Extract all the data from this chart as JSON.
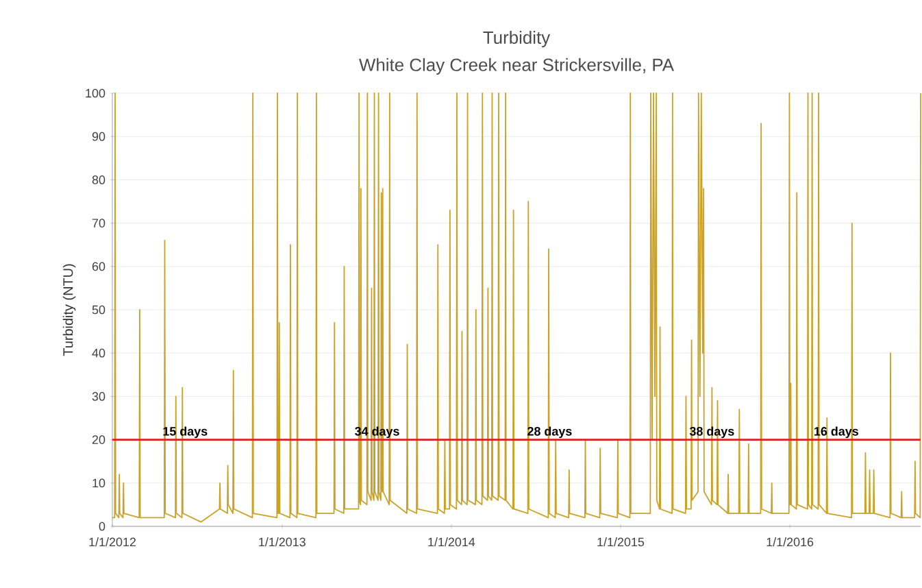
{
  "chart_data": {
    "type": "line",
    "title": "Turbidity",
    "subtitle": "White Clay Creek near Strickersville, PA",
    "ylabel": "Turbidity (NTU)",
    "color": "#c9a227",
    "marker": "none",
    "line_style": "solid",
    "grid": "y",
    "xlim": [
      "2012-01-01",
      "2016-10-09"
    ],
    "xticks": [
      {
        "value": "2012-01-01",
        "label": "1/1/2012"
      },
      {
        "value": "2013-01-01",
        "label": "1/1/2013"
      },
      {
        "value": "2014-01-01",
        "label": "1/1/2014"
      },
      {
        "value": "2015-01-01",
        "label": "1/1/2015"
      },
      {
        "value": "2016-01-01",
        "label": "1/1/2016"
      }
    ],
    "ylim": [
      0,
      100
    ],
    "yticks": [
      0,
      10,
      20,
      30,
      40,
      50,
      60,
      70,
      80,
      90,
      100
    ],
    "ref_lines": [
      {
        "axis": "y",
        "value": 20,
        "color": "#e02020"
      }
    ],
    "annotations": [
      {
        "text": "15 days",
        "x": "2012-06-06",
        "y": 20
      },
      {
        "text": "34 days",
        "x": "2013-07-25",
        "y": 20
      },
      {
        "text": "28 days",
        "x": "2014-08-01",
        "y": 20
      },
      {
        "text": "38 days",
        "x": "2015-07-17",
        "y": 20
      },
      {
        "text": "16 days",
        "x": "2016-04-10",
        "y": 20
      }
    ],
    "x": [
      "2012-01-01",
      "2012-01-06",
      "2012-01-07",
      "2012-01-08",
      "2012-01-15",
      "2012-01-16",
      "2012-01-17",
      "2012-01-24",
      "2012-01-25",
      "2012-01-26",
      "2012-02-28",
      "2012-02-29",
      "2012-03-01",
      "2012-04-22",
      "2012-04-23",
      "2012-04-24",
      "2012-05-16",
      "2012-05-17",
      "2012-05-18",
      "2012-05-30",
      "2012-05-31",
      "2012-06-01",
      "2012-07-10",
      "2012-08-19",
      "2012-08-20",
      "2012-08-21",
      "2012-09-05",
      "2012-09-06",
      "2012-09-07",
      "2012-09-17",
      "2012-09-18",
      "2012-09-19",
      "2012-10-29",
      "2012-10-30",
      "2012-10-31",
      "2012-12-21",
      "2012-12-22",
      "2012-12-23",
      "2012-12-25",
      "2012-12-26",
      "2012-12-27",
      "2013-01-18",
      "2013-01-19",
      "2013-01-20",
      "2013-02-02",
      "2013-02-03",
      "2013-02-04",
      "2013-03-15",
      "2013-03-16",
      "2013-03-17",
      "2013-04-23",
      "2013-04-24",
      "2013-04-25",
      "2013-05-14",
      "2013-05-15",
      "2013-05-16",
      "2013-06-15",
      "2013-06-16",
      "2013-06-17",
      "2013-06-19",
      "2013-06-20",
      "2013-06-21",
      "2013-07-03",
      "2013-07-04",
      "2013-07-05",
      "2013-07-12",
      "2013-07-13",
      "2013-07-14",
      "2013-07-18",
      "2013-07-19",
      "2013-07-20",
      "2013-07-27",
      "2013-07-28",
      "2013-07-29",
      "2013-08-02",
      "2013-08-03",
      "2013-08-04",
      "2013-08-05",
      "2013-08-06",
      "2013-08-07",
      "2013-08-20",
      "2013-08-21",
      "2013-08-22",
      "2013-09-27",
      "2013-09-28",
      "2013-09-29",
      "2013-10-18",
      "2013-10-19",
      "2013-10-20",
      "2013-12-02",
      "2013-12-03",
      "2013-12-04",
      "2013-12-17",
      "2013-12-18",
      "2013-12-19",
      "2013-12-28",
      "2013-12-29",
      "2013-12-30",
      "2014-01-12",
      "2014-01-13",
      "2014-01-14",
      "2014-01-23",
      "2014-01-24",
      "2014-01-25",
      "2014-02-04",
      "2014-02-05",
      "2014-02-06",
      "2014-02-22",
      "2014-02-23",
      "2014-02-24",
      "2014-03-08",
      "2014-03-09",
      "2014-03-10",
      "2014-03-20",
      "2014-03-21",
      "2014-03-22",
      "2014-03-29",
      "2014-03-30",
      "2014-03-31",
      "2014-04-12",
      "2014-04-13",
      "2014-04-14",
      "2014-04-27",
      "2014-04-28",
      "2014-04-29",
      "2014-05-14",
      "2014-05-15",
      "2014-05-16",
      "2014-06-15",
      "2014-06-16",
      "2014-06-17",
      "2014-07-29",
      "2014-07-30",
      "2014-07-31",
      "2014-08-13",
      "2014-08-14",
      "2014-08-15",
      "2014-09-11",
      "2014-09-12",
      "2014-09-13",
      "2014-10-16",
      "2014-10-17",
      "2014-10-18",
      "2014-11-17",
      "2014-11-18",
      "2014-11-19",
      "2014-12-25",
      "2014-12-26",
      "2014-12-27",
      "2015-01-21",
      "2015-01-22",
      "2015-01-23",
      "2015-03-06",
      "2015-03-07",
      "2015-03-10",
      "2015-03-13",
      "2015-03-16",
      "2015-03-19",
      "2015-03-20",
      "2015-03-26",
      "2015-03-27",
      "2015-03-28",
      "2015-04-22",
      "2015-04-23",
      "2015-04-24",
      "2015-05-21",
      "2015-05-22",
      "2015-05-23",
      "2015-06-02",
      "2015-06-03",
      "2015-06-04",
      "2015-06-17",
      "2015-06-18",
      "2015-06-21",
      "2015-06-24",
      "2015-06-27",
      "2015-06-29",
      "2015-06-30",
      "2015-07-16",
      "2015-07-17",
      "2015-07-18",
      "2015-07-28",
      "2015-07-29",
      "2015-07-30",
      "2015-08-20",
      "2015-08-21",
      "2015-08-22",
      "2015-09-13",
      "2015-09-14",
      "2015-09-15",
      "2015-10-03",
      "2015-10-04",
      "2015-10-05",
      "2015-10-30",
      "2015-10-31",
      "2015-11-01",
      "2015-11-22",
      "2015-11-23",
      "2015-11-24",
      "2015-12-30",
      "2015-12-31",
      "2016-01-01",
      "2016-01-02",
      "2016-01-03",
      "2016-01-04",
      "2016-01-15",
      "2016-01-16",
      "2016-01-17",
      "2016-02-08",
      "2016-02-09",
      "2016-02-10",
      "2016-02-17",
      "2016-02-18",
      "2016-02-19",
      "2016-03-02",
      "2016-03-03",
      "2016-03-04",
      "2016-03-20",
      "2016-03-21",
      "2016-03-22",
      "2016-05-13",
      "2016-05-14",
      "2016-05-15",
      "2016-06-11",
      "2016-06-12",
      "2016-06-13",
      "2016-06-20",
      "2016-06-21",
      "2016-06-22",
      "2016-06-29",
      "2016-06-30",
      "2016-07-01",
      "2016-08-04",
      "2016-08-05",
      "2016-08-06",
      "2016-08-28",
      "2016-08-29",
      "2016-08-30",
      "2016-09-26",
      "2016-09-27",
      "2016-09-28",
      "2016-10-08",
      "2016-10-09"
    ],
    "values": [
      2,
      2,
      100,
      3,
      2,
      12,
      3,
      2,
      10,
      3,
      2,
      50,
      2,
      2,
      66,
      3,
      2,
      30,
      3,
      2,
      32,
      3,
      1,
      4,
      10,
      4,
      3,
      14,
      5,
      3,
      36,
      4,
      2,
      100,
      3,
      2,
      100,
      3,
      3,
      47,
      3,
      2,
      65,
      3,
      2,
      100,
      3,
      2,
      100,
      3,
      3,
      47,
      4,
      3,
      60,
      4,
      4,
      100,
      6,
      5,
      78,
      6,
      5,
      100,
      8,
      6,
      55,
      8,
      6,
      100,
      8,
      6,
      100,
      8,
      6,
      77,
      10,
      8,
      78,
      8,
      5,
      100,
      6,
      3,
      42,
      4,
      3,
      100,
      4,
      3,
      65,
      4,
      3,
      20,
      4,
      4,
      73,
      5,
      4,
      100,
      6,
      5,
      45,
      6,
      5,
      100,
      6,
      5,
      50,
      6,
      5,
      100,
      7,
      6,
      55,
      7,
      6,
      100,
      7,
      6,
      100,
      7,
      6,
      100,
      6,
      4,
      73,
      4,
      3,
      75,
      4,
      2,
      64,
      3,
      2,
      20,
      3,
      2,
      13,
      3,
      2,
      20,
      3,
      2,
      18,
      3,
      2,
      20,
      3,
      2,
      100,
      3,
      3,
      100,
      20,
      100,
      30,
      100,
      6,
      4,
      46,
      4,
      3,
      100,
      4,
      3,
      30,
      4,
      4,
      43,
      6,
      8,
      100,
      30,
      100,
      40,
      78,
      8,
      5,
      32,
      6,
      5,
      29,
      5,
      3,
      12,
      3,
      3,
      27,
      3,
      3,
      19,
      3,
      3,
      93,
      4,
      3,
      10,
      3,
      3,
      100,
      5,
      5,
      33,
      5,
      4,
      77,
      5,
      4,
      100,
      5,
      4,
      100,
      5,
      4,
      100,
      5,
      3,
      25,
      3,
      2,
      70,
      3,
      3,
      17,
      3,
      3,
      13,
      3,
      3,
      13,
      3,
      2,
      40,
      3,
      2,
      8,
      2,
      2,
      15,
      3,
      2,
      100
    ]
  }
}
